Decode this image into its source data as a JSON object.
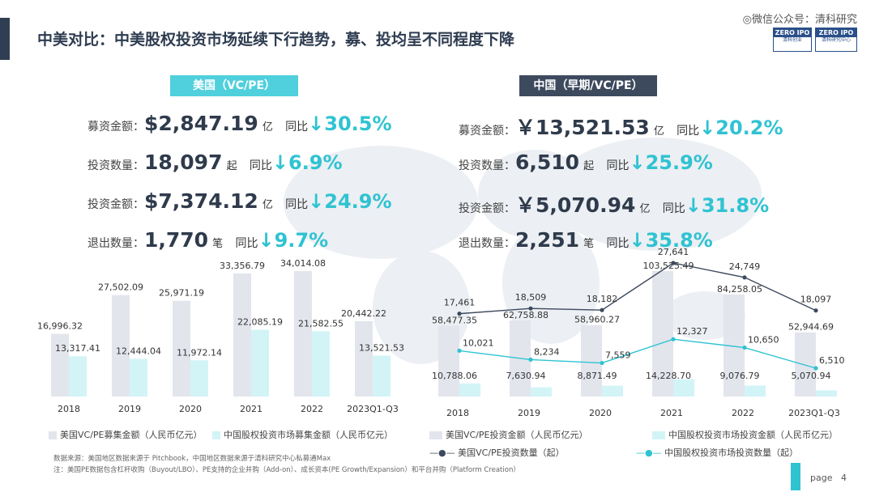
{
  "title": "中美对比：中美股权投资市场延续下行趋势，募、投均呈不同程度下降",
  "watermark": "微信公众号：清科研究",
  "logo": {
    "left_top": "ZERO IPO",
    "left_bottom": "清科创业",
    "right_top": "ZERO IPO",
    "right_bottom": "清科研究中心"
  },
  "us": {
    "header": "美国（VC/PE）",
    "stats": [
      {
        "label": "募资金额：",
        "value": "$2,847.19",
        "unit": "亿",
        "yoy": "同比",
        "change": "30.5%"
      },
      {
        "label": "投资数量：",
        "value": "18,097",
        "unit": "起",
        "yoy": "同比",
        "change": "6.9%"
      },
      {
        "label": "投资金额：",
        "value": "$7,374.12",
        "unit": "亿",
        "yoy": "同比",
        "change": "24.9%"
      },
      {
        "label": "退出数量：",
        "value": "1,770",
        "unit": "笔",
        "yoy": "同比",
        "change": "9.7%"
      }
    ]
  },
  "cn": {
    "header": "中国（早期/VC/PE）",
    "stats": [
      {
        "label": "募资金额：",
        "value": "￥13,521.53",
        "unit": "亿",
        "yoy": "同比",
        "change": "20.2%"
      },
      {
        "label": "投资数量：",
        "value": "6,510",
        "unit": "起",
        "yoy": "同比",
        "change": "25.9%"
      },
      {
        "label": "投资金额：",
        "value": "￥5,070.94",
        "unit": "亿",
        "yoy": "同比",
        "change": "31.8%"
      },
      {
        "label": "退出数量：",
        "value": "2,251",
        "unit": "笔",
        "yoy": "同比",
        "change": "35.8%"
      }
    ]
  },
  "legend_left": {
    "a": "美国VC/PE募集金额（人民币亿元）",
    "b": "中国股权投资市场募集金额（人民币亿元）"
  },
  "legend_right": {
    "a": "美国VC/PE投资金额（人民币亿元）",
    "b": "中国股权投资市场投资金额（人民币亿元）",
    "c": "美国VC/PE投资数量（起）",
    "d": "中国股权投资市场投资数量（起）"
  },
  "notes": {
    "source": "数据来源：美国地区数据来源于 Pitchbook，中国地区数据来源于清科研究中心私募通Max",
    "note": "注：美国PE数据包含杠杆收购（Buyout/LBO）、PE支持的企业并购（Add-on）、成长资本(PE Growth/Expansion）和平台并购（Platform Creation）"
  },
  "page": {
    "label": "page",
    "number": "4"
  },
  "colors": {
    "us_bar": "#e3e5ed",
    "cn_bar": "#d2f4f7",
    "accent": "#2fc3d2",
    "dark": "#2f3e52",
    "us_line": "#3d4a5e"
  },
  "chart_data": [
    {
      "type": "bar",
      "categories": [
        "2018",
        "2019",
        "2020",
        "2021",
        "2022",
        "2023Q1-Q3"
      ],
      "series": [
        {
          "name": "美国VC/PE募集金额（人民币亿元）",
          "values": [
            16996.32,
            27502.09,
            25971.19,
            33356.79,
            34014.08,
            20442.22
          ]
        },
        {
          "name": "中国股权投资市场募集金额（人民币亿元）",
          "values": [
            13317.41,
            12444.04,
            11972.14,
            22085.19,
            21582.55,
            13521.53
          ]
        }
      ],
      "labels_us": [
        "16,996.32",
        "27,502.09",
        "25,971.19",
        "33,356.79",
        "34,014.08",
        "20,442.22"
      ],
      "labels_cn": [
        "13,317.41",
        "12,444.04",
        "11,972.14",
        "22,085.19",
        "21,582.55",
        "13,521.53"
      ]
    },
    {
      "type": "bar",
      "categories": [
        "2018",
        "2019",
        "2020",
        "2021",
        "2022",
        "2023Q1-Q3"
      ],
      "series": [
        {
          "name": "美国VC/PE投资金额（人民币亿元）",
          "values": [
            58477.35,
            62758.88,
            58960.27,
            103525.49,
            84258.05,
            52944.69
          ]
        },
        {
          "name": "中国股权投资市场投资金额（人民币亿元）",
          "values": [
            10788.06,
            7630.94,
            8871.49,
            14228.7,
            9076.79,
            5070.94
          ]
        },
        {
          "name": "美国VC/PE投资数量（起）",
          "type": "line",
          "values": [
            17461,
            18509,
            18182,
            27641,
            24749,
            18097
          ]
        },
        {
          "name": "中国股权投资市场投资数量（起）",
          "type": "line",
          "values": [
            10021,
            8234,
            7559,
            12327,
            10650,
            6510
          ]
        }
      ],
      "labels_us_amt": [
        "58,477.35",
        "62,758.88",
        "58,960.27",
        "103,525.49",
        "84,258.05",
        "52,944.69"
      ],
      "labels_cn_amt": [
        "10,788.06",
        "7,630.94",
        "8,871.49",
        "14,228.70",
        "9,076.79",
        "5,070.94"
      ],
      "labels_us_cnt": [
        "17,461",
        "18,509",
        "18,182",
        "27,641",
        "24,749",
        "18,097"
      ],
      "labels_cn_cnt": [
        "10,021",
        "8,234",
        "7,559",
        "12,327",
        "10,650",
        "6,510"
      ]
    }
  ]
}
